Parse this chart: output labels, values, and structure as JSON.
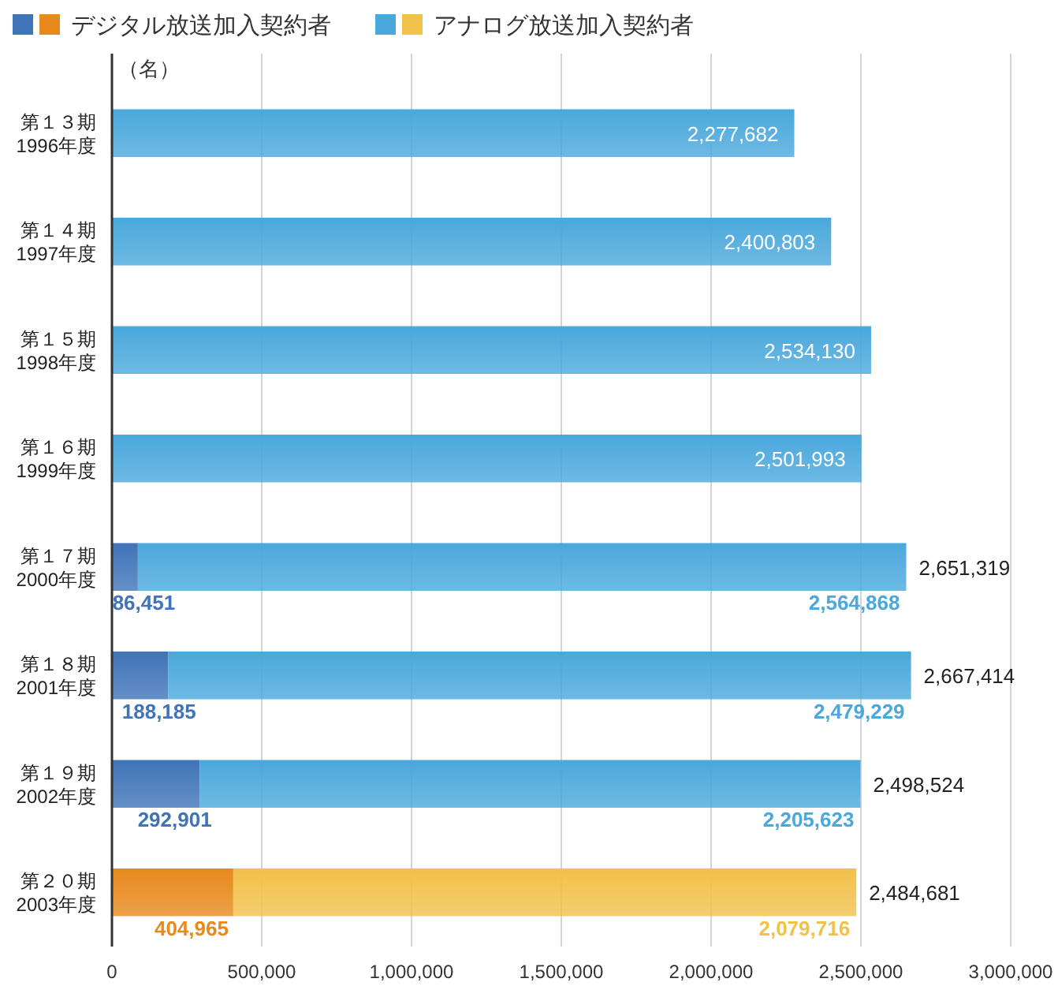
{
  "chart_data": {
    "type": "bar",
    "orientation": "horizontal",
    "stacked": true,
    "xlabel": "（名）",
    "categories": [
      "第１３期\n1996年度",
      "第１４期\n1997年度",
      "第１５期\n1998年度",
      "第１６期\n1999年度",
      "第１７期\n2000年度",
      "第１８期\n2001年度",
      "第１９期\n2002年度",
      "第２０期\n2003年度"
    ],
    "series": [
      {
        "name": "デジタル放送加入契約者",
        "color": "#3f74b8",
        "colors": [
          "#3f74b8",
          "#3f74b8",
          "#3f74b8",
          "#3f74b8",
          "#3f74b8",
          "#3f74b8",
          "#3f74b8",
          "#e8891c"
        ],
        "values": [
          null,
          null,
          null,
          null,
          86451,
          188185,
          292901,
          404965
        ],
        "value_labels": [
          null,
          null,
          null,
          null,
          "86,451",
          "188,185",
          "292,901",
          "404,965"
        ]
      },
      {
        "name": "アナログ放送加入契約者",
        "color": "#4aa8dc",
        "colors": [
          "#4aa8dc",
          "#4aa8dc",
          "#4aa8dc",
          "#4aa8dc",
          "#4aa8dc",
          "#4aa8dc",
          "#4aa8dc",
          "#f2c14a"
        ],
        "values": [
          2277682,
          2400803,
          2534130,
          2501993,
          2564868,
          2479229,
          2205623,
          2079716
        ],
        "value_labels": [
          "2,277,682",
          "2,400,803",
          "2,534,130",
          "2,501,993",
          "2,564,868",
          "2,479,229",
          "2,205,623",
          "2,079,716"
        ]
      }
    ],
    "totals": [
      null,
      null,
      null,
      null,
      "2,651,319",
      "2,667,414",
      "2,498,524",
      "2,484,681"
    ],
    "xlim": [
      0,
      3000000
    ],
    "xticks": [
      {
        "value": 0,
        "label": "0"
      },
      {
        "value": 500000,
        "label": "500,000"
      },
      {
        "value": 1000000,
        "label": "1,000,000"
      },
      {
        "value": 1500000,
        "label": "1,500,000"
      },
      {
        "value": 2000000,
        "label": "2,000,000"
      },
      {
        "value": 2500000,
        "label": "2,500,000"
      },
      {
        "value": 3000000,
        "label": "3,000,000"
      }
    ],
    "grid": "x",
    "legend": "top left"
  }
}
